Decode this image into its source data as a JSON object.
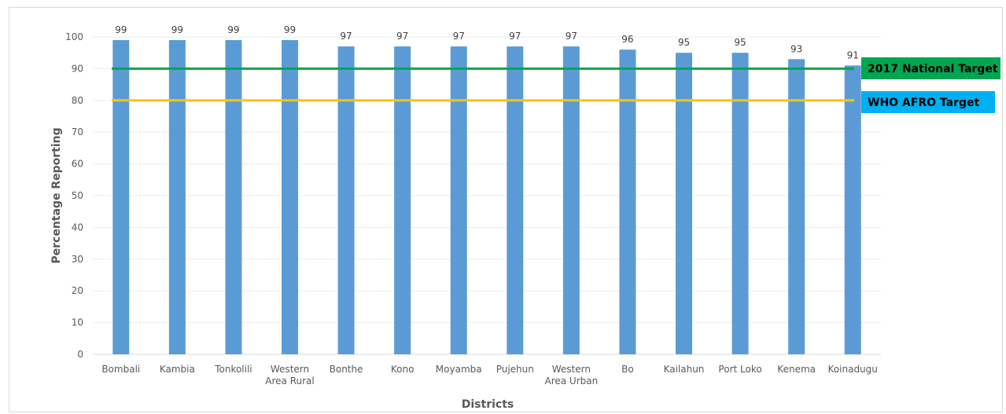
{
  "chart_data": {
    "type": "bar",
    "title": "",
    "xlabel": "Districts",
    "ylabel": "Percentage Reporting",
    "ylim": [
      0,
      100
    ],
    "yticks": [
      0,
      10,
      20,
      30,
      40,
      50,
      60,
      70,
      80,
      90,
      100
    ],
    "grid": true,
    "categories": [
      [
        "Bombali"
      ],
      [
        "Kambia"
      ],
      [
        "Tonkolili"
      ],
      [
        "Western",
        "Area Rural"
      ],
      [
        "Bonthe"
      ],
      [
        "Kono"
      ],
      [
        "Moyamba"
      ],
      [
        "Pujehun"
      ],
      [
        "Western",
        "Area Urban"
      ],
      [
        "Bo"
      ],
      [
        "Kailahun"
      ],
      [
        "Port Loko"
      ],
      [
        "Kenema"
      ],
      [
        "Koinadugu"
      ]
    ],
    "values": [
      99,
      99,
      99,
      99,
      97,
      97,
      97,
      97,
      97,
      96,
      95,
      95,
      93,
      91
    ],
    "bar_color": "#5b9bd5",
    "reference_lines": [
      {
        "label": "2017 National Target",
        "value": 90,
        "color": "#00a651",
        "label_bg": "#00a651"
      },
      {
        "label": "WHO AFRO Target",
        "value": 80,
        "color": "#f5c518",
        "label_bg": "#00b0f0"
      }
    ]
  }
}
